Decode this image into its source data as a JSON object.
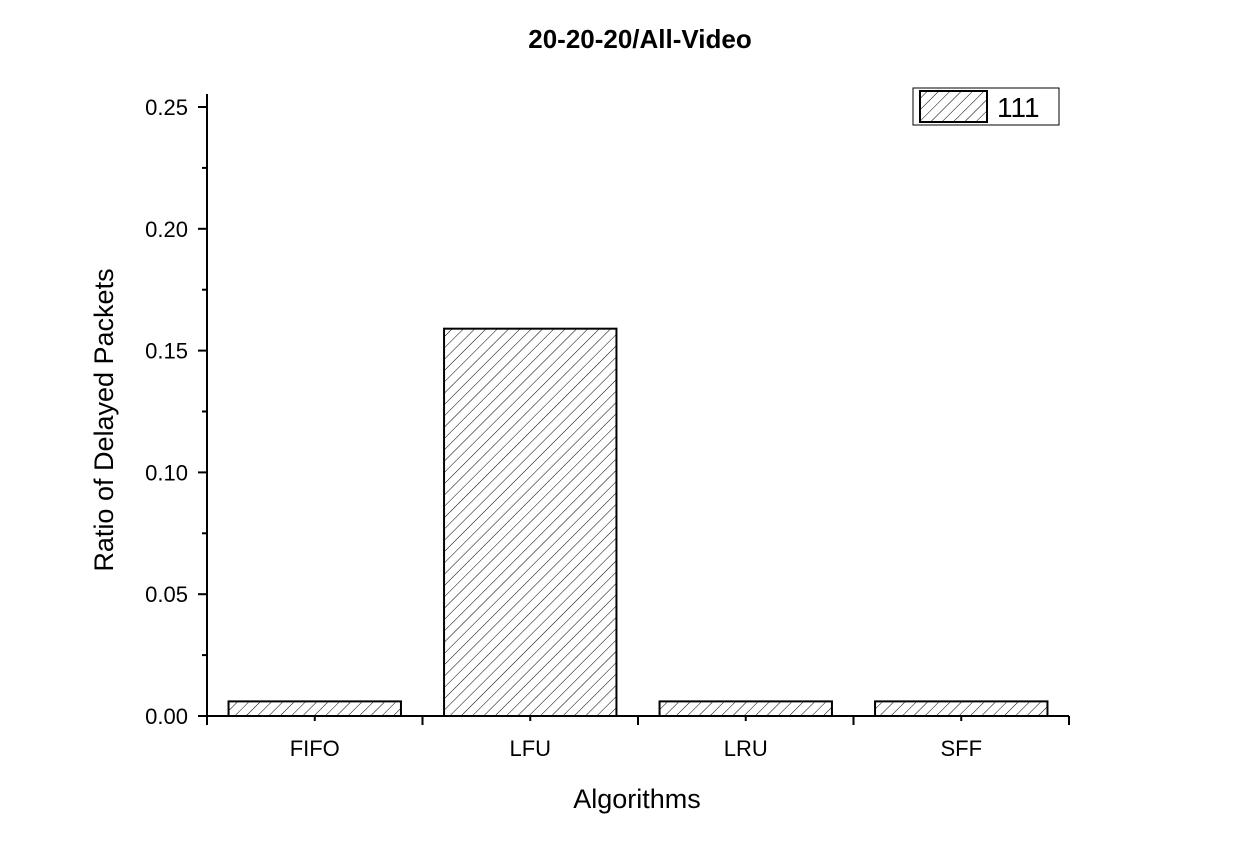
{
  "chart_data": {
    "type": "bar",
    "title": "20-20-20/All-Video",
    "xlabel": "Algorithms",
    "ylabel": "Ratio of Delayed Packets",
    "categories": [
      "FIFO",
      "LFU",
      "LRU",
      "SFF"
    ],
    "series": [
      {
        "name": "111",
        "values": [
          0.006,
          0.159,
          0.006,
          0.006
        ]
      }
    ],
    "ylim": [
      0,
      0.25
    ],
    "yticks": [
      "0.00",
      "0.05",
      "0.10",
      "0.15",
      "0.20",
      "0.25"
    ],
    "grid": false,
    "legend_position": "top-right",
    "bar_fill": "hatched",
    "colors": {
      "bar_stroke": "#000000",
      "axis": "#000000",
      "background": "#ffffff"
    }
  }
}
